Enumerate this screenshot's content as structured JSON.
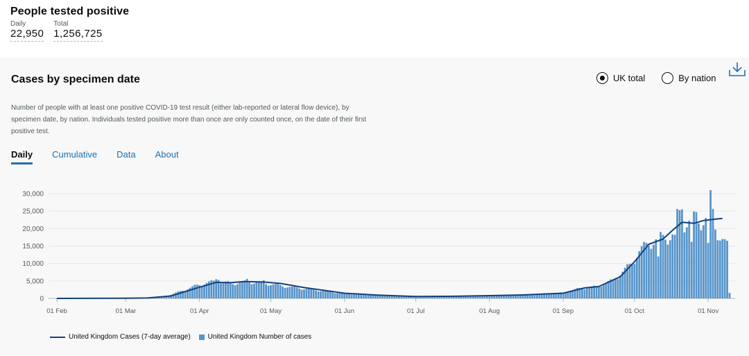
{
  "headline": {
    "title": "People tested positive",
    "daily_label": "Daily",
    "daily_value": "22,950",
    "total_label": "Total",
    "total_value": "1,256,725"
  },
  "card": {
    "title": "Cases by specimen date",
    "description": "Number of people with at least one positive COVID-19 test result (either lab-reported or lateral flow device), by specimen date, by nation. Individuals tested positive more than once are only counted once, on the date of their first positive test.",
    "radio_uk": "UK total",
    "radio_nation": "By nation",
    "selected_radio": "UK total",
    "tabs": [
      "Daily",
      "Cumulative",
      "Data",
      "About"
    ],
    "active_tab": "Daily",
    "download_icon": "download-icon"
  },
  "colors": {
    "bar": "#5694ca",
    "line": "#12407f",
    "link": "#1d70b8",
    "grid": "#e6e6e6"
  },
  "chart_data": {
    "type": "bar",
    "title": "",
    "xlabel": "",
    "ylabel": "",
    "ylim": [
      0,
      32000
    ],
    "yticks": [
      0,
      5000,
      10000,
      15000,
      20000,
      25000,
      30000
    ],
    "ytick_labels": [
      "0",
      "5,000",
      "10,000",
      "15,000",
      "20,000",
      "25,000",
      "30,000"
    ],
    "xtick_labels": [
      "01 Feb",
      "01 Mar",
      "01 Apr",
      "01 May",
      "01 Jun",
      "01 Jul",
      "01 Aug",
      "01 Sep",
      "01 Oct",
      "01 Nov"
    ],
    "xtick_dates": [
      "2020-02-01",
      "2020-03-01",
      "2020-04-01",
      "2020-05-01",
      "2020-06-01",
      "2020-07-01",
      "2020-08-01",
      "2020-09-01",
      "2020-10-01",
      "2020-11-01"
    ],
    "xlim": [
      "2020-02-01",
      "2020-11-10"
    ],
    "grid": true,
    "legend_position": "bottom-left",
    "bar_anchors": [
      [
        "2020-02-01",
        0
      ],
      [
        "2020-03-01",
        40
      ],
      [
        "2020-03-10",
        150
      ],
      [
        "2020-03-15",
        400
      ],
      [
        "2020-03-20",
        1100
      ],
      [
        "2020-03-25",
        2300
      ],
      [
        "2020-03-31",
        3800
      ],
      [
        "2020-04-07",
        4900
      ],
      [
        "2020-04-15",
        4300
      ],
      [
        "2020-04-22",
        4800
      ],
      [
        "2020-04-30",
        4200
      ],
      [
        "2020-05-10",
        3200
      ],
      [
        "2020-05-20",
        2400
      ],
      [
        "2020-06-01",
        1400
      ],
      [
        "2020-06-15",
        900
      ],
      [
        "2020-07-01",
        550
      ],
      [
        "2020-07-15",
        600
      ],
      [
        "2020-08-01",
        800
      ],
      [
        "2020-08-15",
        1050
      ],
      [
        "2020-09-01",
        1600
      ],
      [
        "2020-09-08",
        2900
      ],
      [
        "2020-09-15",
        3400
      ],
      [
        "2020-09-22",
        5200
      ],
      [
        "2020-09-29",
        9500
      ],
      [
        "2020-10-03",
        13500
      ],
      [
        "2020-10-08",
        16500
      ],
      [
        "2020-10-13",
        17500
      ],
      [
        "2020-10-18",
        18500
      ],
      [
        "2020-10-22",
        22000
      ],
      [
        "2020-10-26",
        22500
      ],
      [
        "2020-10-30",
        22800
      ],
      [
        "2020-11-02",
        23500
      ],
      [
        "2020-11-06",
        18000
      ],
      [
        "2020-11-09",
        15000
      ],
      [
        "2020-11-10",
        1500
      ]
    ],
    "bar_peaks": [
      [
        "2020-04-08",
        5500
      ],
      [
        "2020-04-09",
        5300
      ],
      [
        "2020-04-21",
        5600
      ],
      [
        "2020-04-28",
        5200
      ],
      [
        "2020-10-19",
        25600
      ],
      [
        "2020-10-20",
        25300
      ],
      [
        "2020-10-21",
        25500
      ],
      [
        "2020-10-26",
        24900
      ],
      [
        "2020-10-27",
        24700
      ],
      [
        "2020-11-02",
        31000
      ],
      [
        "2020-11-03",
        25600
      ],
      [
        "2020-10-25",
        16200
      ],
      [
        "2020-11-01",
        15900
      ],
      [
        "2020-10-18",
        18200
      ],
      [
        "2020-10-11",
        12000
      ]
    ],
    "series": [
      {
        "name": "United Kingdom Cases (7-day average)",
        "type": "line",
        "points": [
          [
            "2020-02-01",
            0
          ],
          [
            "2020-03-01",
            30
          ],
          [
            "2020-03-10",
            120
          ],
          [
            "2020-03-20",
            700
          ],
          [
            "2020-03-31",
            3000
          ],
          [
            "2020-04-08",
            4600
          ],
          [
            "2020-04-14",
            4500
          ],
          [
            "2020-04-20",
            4800
          ],
          [
            "2020-04-28",
            4700
          ],
          [
            "2020-05-05",
            4300
          ],
          [
            "2020-05-15",
            3100
          ],
          [
            "2020-06-01",
            1500
          ],
          [
            "2020-06-15",
            950
          ],
          [
            "2020-07-01",
            550
          ],
          [
            "2020-07-15",
            600
          ],
          [
            "2020-08-01",
            800
          ],
          [
            "2020-08-15",
            1000
          ],
          [
            "2020-09-01",
            1500
          ],
          [
            "2020-09-10",
            3000
          ],
          [
            "2020-09-16",
            3400
          ],
          [
            "2020-09-25",
            6200
          ],
          [
            "2020-10-01",
            10500
          ],
          [
            "2020-10-07",
            15500
          ],
          [
            "2020-10-13",
            17000
          ],
          [
            "2020-10-17",
            19500
          ],
          [
            "2020-10-21",
            21800
          ],
          [
            "2020-10-26",
            21500
          ],
          [
            "2020-10-30",
            22300
          ],
          [
            "2020-11-04",
            22700
          ],
          [
            "2020-11-07",
            22900
          ]
        ]
      },
      {
        "name": "United Kingdom Number of cases",
        "type": "bar"
      }
    ]
  }
}
